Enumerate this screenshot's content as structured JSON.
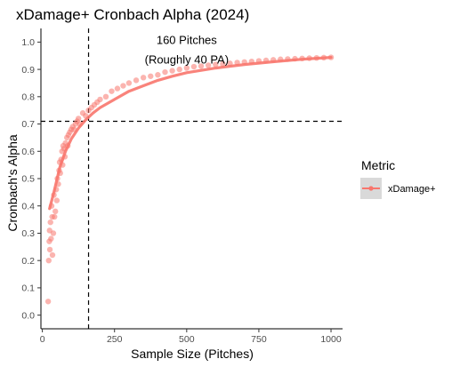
{
  "chart_data": {
    "type": "scatter",
    "title": "xDamage+ Cronbach Alpha (2024)",
    "xlabel": "Sample Size (Pitches)",
    "ylabel": "Cronbach's Alpha",
    "xlim": [
      -5,
      1040
    ],
    "ylim": [
      -0.05,
      1.05
    ],
    "x_ticks": [
      0,
      250,
      500,
      750,
      1000
    ],
    "y_ticks": [
      0.0,
      0.1,
      0.2,
      0.3,
      0.4,
      0.5,
      0.6,
      0.7,
      0.8,
      0.9,
      1.0
    ],
    "grid": false,
    "reference_lines": {
      "vertical_x": 160,
      "horizontal_y": 0.71
    },
    "annotation": {
      "lines": [
        "160 Pitches",
        "(Roughly 40 PA)"
      ],
      "x": 500,
      "y": 1.01
    },
    "series": [
      {
        "name": "xDamage+",
        "color": "#F8766D",
        "points": [
          [
            20,
            0.05
          ],
          [
            22,
            0.2
          ],
          [
            24,
            0.27
          ],
          [
            25,
            0.31
          ],
          [
            26,
            0.24
          ],
          [
            28,
            0.34
          ],
          [
            30,
            0.28
          ],
          [
            32,
            0.4
          ],
          [
            34,
            0.36
          ],
          [
            35,
            0.22
          ],
          [
            38,
            0.3
          ],
          [
            40,
            0.44
          ],
          [
            42,
            0.36
          ],
          [
            45,
            0.38
          ],
          [
            48,
            0.46
          ],
          [
            50,
            0.42
          ],
          [
            52,
            0.5
          ],
          [
            55,
            0.48
          ],
          [
            58,
            0.53
          ],
          [
            60,
            0.56
          ],
          [
            62,
            0.52
          ],
          [
            65,
            0.57
          ],
          [
            68,
            0.6
          ],
          [
            70,
            0.55
          ],
          [
            72,
            0.62
          ],
          [
            75,
            0.61
          ],
          [
            78,
            0.58
          ],
          [
            80,
            0.63
          ],
          [
            85,
            0.65
          ],
          [
            88,
            0.62
          ],
          [
            90,
            0.66
          ],
          [
            95,
            0.67
          ],
          [
            100,
            0.68
          ],
          [
            105,
            0.69
          ],
          [
            110,
            0.68
          ],
          [
            115,
            0.7
          ],
          [
            120,
            0.71
          ],
          [
            125,
            0.72
          ],
          [
            130,
            0.7
          ],
          [
            140,
            0.74
          ],
          [
            150,
            0.73
          ],
          [
            160,
            0.75
          ],
          [
            170,
            0.76
          ],
          [
            180,
            0.77
          ],
          [
            190,
            0.78
          ],
          [
            200,
            0.79
          ],
          [
            220,
            0.8
          ],
          [
            240,
            0.82
          ],
          [
            260,
            0.83
          ],
          [
            280,
            0.84
          ],
          [
            300,
            0.85
          ],
          [
            325,
            0.86
          ],
          [
            350,
            0.87
          ],
          [
            375,
            0.875
          ],
          [
            400,
            0.88
          ],
          [
            425,
            0.89
          ],
          [
            450,
            0.895
          ],
          [
            475,
            0.9
          ],
          [
            500,
            0.905
          ],
          [
            525,
            0.91
          ],
          [
            550,
            0.912
          ],
          [
            575,
            0.915
          ],
          [
            600,
            0.918
          ],
          [
            625,
            0.92
          ],
          [
            650,
            0.922
          ],
          [
            675,
            0.925
          ],
          [
            700,
            0.927
          ],
          [
            725,
            0.929
          ],
          [
            750,
            0.931
          ],
          [
            775,
            0.933
          ],
          [
            800,
            0.935
          ],
          [
            825,
            0.937
          ],
          [
            850,
            0.938
          ],
          [
            875,
            0.939
          ],
          [
            900,
            0.94
          ],
          [
            925,
            0.941
          ],
          [
            950,
            0.942
          ],
          [
            975,
            0.943
          ],
          [
            1000,
            0.944
          ]
        ],
        "trend": [
          [
            25,
            0.39
          ],
          [
            40,
            0.45
          ],
          [
            60,
            0.54
          ],
          [
            80,
            0.6
          ],
          [
            100,
            0.645
          ],
          [
            125,
            0.685
          ],
          [
            150,
            0.715
          ],
          [
            175,
            0.74
          ],
          [
            200,
            0.76
          ],
          [
            250,
            0.79
          ],
          [
            300,
            0.82
          ],
          [
            350,
            0.84
          ],
          [
            400,
            0.86
          ],
          [
            450,
            0.875
          ],
          [
            500,
            0.888
          ],
          [
            600,
            0.905
          ],
          [
            700,
            0.918
          ],
          [
            800,
            0.928
          ],
          [
            900,
            0.937
          ],
          [
            1000,
            0.944
          ]
        ]
      }
    ],
    "legend": {
      "title": "Metric",
      "placement": "right",
      "entries": [
        "xDamage+"
      ]
    }
  }
}
